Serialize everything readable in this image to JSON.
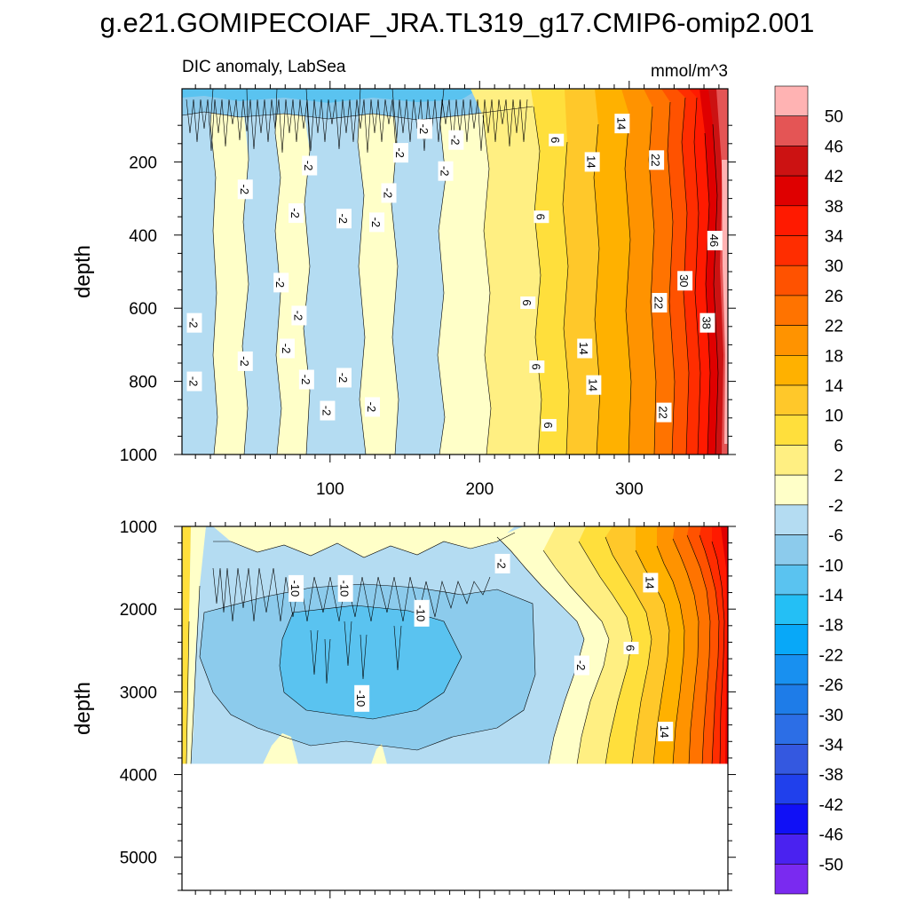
{
  "title": "g.e21.GOMIPECOIAF_JRA.TL319_g17.CMIP6-omip2.001",
  "units": "mmol/m^3",
  "chart_data": [
    {
      "type": "heatmap",
      "panel": "upper",
      "left_label": "DIC anomaly, LabSea",
      "xlabel": "",
      "ylabel": "depth",
      "xlim": [
        1,
        366
      ],
      "ylim": [
        1000,
        0
      ],
      "xticks": [
        "100",
        "200",
        "300"
      ],
      "yticks": [
        "200",
        "400",
        "600",
        "800",
        "1000"
      ],
      "contour_labels": [
        {
          "text": "-2",
          "x": 9,
          "y": 640
        },
        {
          "text": "-2",
          "x": 9,
          "y": 800
        },
        {
          "text": "-2",
          "x": 43,
          "y": 275
        },
        {
          "text": "-2",
          "x": 43,
          "y": 745
        },
        {
          "text": "-2",
          "x": 67,
          "y": 530
        },
        {
          "text": "-2",
          "x": 71,
          "y": 710
        },
        {
          "text": "-2",
          "x": 77,
          "y": 340
        },
        {
          "text": "-2",
          "x": 79,
          "y": 620
        },
        {
          "text": "-2",
          "x": 84,
          "y": 795
        },
        {
          "text": "-2",
          "x": 86,
          "y": 210
        },
        {
          "text": "-2",
          "x": 98,
          "y": 880
        },
        {
          "text": "-2",
          "x": 109,
          "y": 355
        },
        {
          "text": "-2",
          "x": 109,
          "y": 790
        },
        {
          "text": "-2",
          "x": 128,
          "y": 870
        },
        {
          "text": "-2",
          "x": 131,
          "y": 365
        },
        {
          "text": "-2",
          "x": 139,
          "y": 285
        },
        {
          "text": "-2",
          "x": 147,
          "y": 175
        },
        {
          "text": "-2",
          "x": 163,
          "y": 110
        },
        {
          "text": "-2",
          "x": 177,
          "y": 225
        },
        {
          "text": "-2",
          "x": 184,
          "y": 140
        },
        {
          "text": "6",
          "x": 251,
          "y": 140
        },
        {
          "text": "6",
          "x": 241,
          "y": 350
        },
        {
          "text": "6",
          "x": 232,
          "y": 585
        },
        {
          "text": "6",
          "x": 238,
          "y": 760
        },
        {
          "text": "6",
          "x": 246,
          "y": 920
        },
        {
          "text": "14",
          "x": 295,
          "y": 95
        },
        {
          "text": "14",
          "x": 275,
          "y": 200
        },
        {
          "text": "14",
          "x": 270,
          "y": 710
        },
        {
          "text": "14",
          "x": 276,
          "y": 810
        },
        {
          "text": "22",
          "x": 318,
          "y": 195
        },
        {
          "text": "22",
          "x": 320,
          "y": 585
        },
        {
          "text": "22",
          "x": 323,
          "y": 885
        },
        {
          "text": "30",
          "x": 337,
          "y": 525
        },
        {
          "text": "38",
          "x": 352,
          "y": 640
        },
        {
          "text": "46",
          "x": 357,
          "y": 415
        }
      ]
    },
    {
      "type": "heatmap",
      "panel": "lower",
      "xlabel": "",
      "ylabel": "depth",
      "xlim": [
        1,
        366
      ],
      "ylim": [
        5400,
        1000
      ],
      "data_bottom_depth": 3870,
      "yticks": [
        "1000",
        "2000",
        "3000",
        "4000",
        "5000"
      ],
      "contour_labels": [
        {
          "text": "-10",
          "x": 77,
          "y": 1750
        },
        {
          "text": "-10",
          "x": 110,
          "y": 1750
        },
        {
          "text": "-10",
          "x": 161,
          "y": 2050
        },
        {
          "text": "-10",
          "x": 121,
          "y": 3080
        },
        {
          "text": "-2",
          "x": 215,
          "y": 1450
        },
        {
          "text": "-2",
          "x": 268,
          "y": 2680
        },
        {
          "text": "6",
          "x": 301,
          "y": 2470
        },
        {
          "text": "14",
          "x": 314,
          "y": 1680
        },
        {
          "text": "14",
          "x": 324,
          "y": 3480
        }
      ]
    }
  ],
  "colorbar": {
    "labels": [
      "50",
      "46",
      "42",
      "38",
      "34",
      "30",
      "26",
      "22",
      "18",
      "14",
      "10",
      "6",
      "2",
      "-2",
      "-6",
      "-10",
      "-14",
      "-18",
      "-22",
      "-26",
      "-30",
      "-34",
      "-38",
      "-42",
      "-46",
      "-50"
    ],
    "colors": [
      "#ffb3b3",
      "#e45555",
      "#cc1212",
      "#df0000",
      "#ff1a00",
      "#ff2d00",
      "#ff5200",
      "#ff7300",
      "#ff9300",
      "#ffb100",
      "#ffc82a",
      "#ffdf3c",
      "#ffef82",
      "#ffffc8",
      "#b4dcf2",
      "#8ccbec",
      "#5ac3f0",
      "#24bff5",
      "#08a8f8",
      "#1890f0",
      "#1e7ce8",
      "#2c6ee6",
      "#3458e0",
      "#2040ec",
      "#1010f6",
      "#4a22f0",
      "#7a2af0"
    ]
  }
}
